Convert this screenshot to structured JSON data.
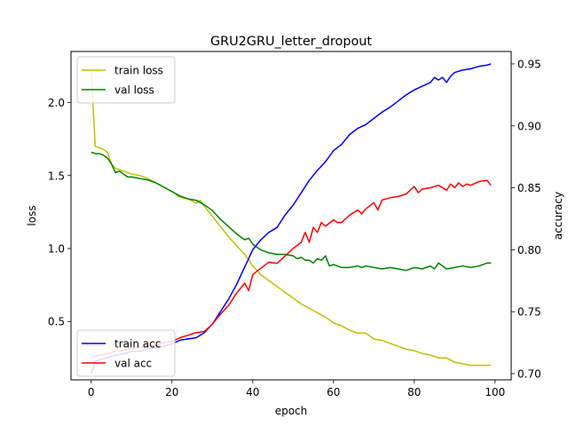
{
  "chart_data": {
    "type": "line",
    "title": "GRU2GRU_letter_dropout",
    "xlabel": "epoch",
    "ylabel_left": "loss",
    "ylabel_right": "accuracy",
    "xlim": [
      -5,
      104
    ],
    "ylim_left": [
      0.1,
      2.35
    ],
    "ylim_right": [
      0.695,
      0.96
    ],
    "xticks": [
      0,
      20,
      40,
      60,
      80,
      100
    ],
    "yticks_left": [
      0.5,
      1.0,
      1.5,
      2.0
    ],
    "yticks_right": [
      0.7,
      0.75,
      0.8,
      0.85,
      0.9,
      0.95
    ],
    "grid": false,
    "legend_left": {
      "placement": "top-left",
      "entries": [
        "train loss",
        "val loss"
      ]
    },
    "legend_right": {
      "placement": "bottom-left",
      "entries": [
        "train acc",
        "val acc"
      ]
    },
    "colors": {
      "train_loss": "#bfbf00",
      "val_loss": "#008000",
      "train_acc": "#0000ff",
      "val_acc": "#ff0000"
    },
    "series": [
      {
        "name": "train loss",
        "axis": "left",
        "color": "#bfbf00",
        "x": [
          0,
          1,
          2,
          3,
          4,
          5,
          6,
          8,
          10,
          12,
          14,
          16,
          18,
          20,
          22,
          24,
          26,
          27,
          28,
          30,
          32,
          34,
          36,
          38,
          40,
          42,
          44,
          46,
          48,
          50,
          52,
          54,
          56,
          58,
          60,
          62,
          64,
          66,
          68,
          70,
          72,
          74,
          76,
          78,
          80,
          82,
          84,
          86,
          88,
          90,
          92,
          94,
          96,
          99
        ],
        "values": [
          2.22,
          1.7,
          1.69,
          1.68,
          1.66,
          1.58,
          1.55,
          1.53,
          1.51,
          1.5,
          1.48,
          1.45,
          1.42,
          1.39,
          1.35,
          1.34,
          1.31,
          1.33,
          1.29,
          1.22,
          1.15,
          1.08,
          1.02,
          0.96,
          0.88,
          0.82,
          0.78,
          0.74,
          0.7,
          0.66,
          0.62,
          0.59,
          0.56,
          0.53,
          0.49,
          0.47,
          0.44,
          0.42,
          0.42,
          0.38,
          0.37,
          0.35,
          0.33,
          0.31,
          0.3,
          0.28,
          0.27,
          0.25,
          0.25,
          0.22,
          0.21,
          0.2,
          0.2,
          0.2
        ]
      },
      {
        "name": "val loss",
        "axis": "left",
        "color": "#008000",
        "x": [
          0,
          1,
          2,
          3,
          4,
          5,
          6,
          7,
          8,
          9,
          10,
          12,
          14,
          16,
          18,
          20,
          22,
          24,
          26,
          28,
          30,
          32,
          34,
          36,
          38,
          39,
          40,
          42,
          44,
          46,
          48,
          50,
          51,
          52,
          53,
          54,
          55,
          56,
          57,
          58,
          59,
          60,
          62,
          64,
          66,
          67,
          68,
          70,
          72,
          74,
          76,
          78,
          80,
          82,
          84,
          85,
          86,
          88,
          90,
          92,
          94,
          96,
          98,
          99
        ],
        "values": [
          1.66,
          1.65,
          1.65,
          1.64,
          1.62,
          1.58,
          1.52,
          1.53,
          1.51,
          1.49,
          1.49,
          1.48,
          1.47,
          1.45,
          1.42,
          1.39,
          1.36,
          1.34,
          1.33,
          1.3,
          1.26,
          1.2,
          1.15,
          1.1,
          1.06,
          1.07,
          1.03,
          0.99,
          0.97,
          0.96,
          0.96,
          0.95,
          0.93,
          0.94,
          0.92,
          0.92,
          0.9,
          0.93,
          0.92,
          0.95,
          0.88,
          0.89,
          0.87,
          0.87,
          0.88,
          0.87,
          0.88,
          0.87,
          0.86,
          0.87,
          0.86,
          0.85,
          0.87,
          0.86,
          0.88,
          0.86,
          0.9,
          0.86,
          0.87,
          0.88,
          0.87,
          0.88,
          0.9,
          0.9
        ]
      },
      {
        "name": "train acc",
        "axis": "right",
        "color": "#0000ff",
        "x": [
          0,
          1,
          2,
          4,
          6,
          8,
          10,
          12,
          14,
          16,
          18,
          20,
          22,
          24,
          26,
          28,
          30,
          32,
          34,
          36,
          38,
          40,
          42,
          44,
          46,
          48,
          50,
          52,
          54,
          56,
          58,
          60,
          62,
          64,
          66,
          68,
          70,
          72,
          74,
          76,
          78,
          80,
          82,
          84,
          85,
          86,
          87,
          88,
          89,
          90,
          92,
          94,
          96,
          98,
          99
        ],
        "values": [
          0.7,
          0.71,
          0.711,
          0.713,
          0.715,
          0.716,
          0.718,
          0.718,
          0.72,
          0.721,
          0.722,
          0.724,
          0.727,
          0.728,
          0.729,
          0.733,
          0.74,
          0.75,
          0.76,
          0.772,
          0.786,
          0.8,
          0.808,
          0.814,
          0.818,
          0.828,
          0.836,
          0.846,
          0.856,
          0.864,
          0.871,
          0.88,
          0.885,
          0.893,
          0.898,
          0.901,
          0.906,
          0.911,
          0.915,
          0.92,
          0.925,
          0.929,
          0.932,
          0.935,
          0.939,
          0.937,
          0.939,
          0.935,
          0.94,
          0.943,
          0.945,
          0.946,
          0.948,
          0.949,
          0.95
        ]
      },
      {
        "name": "val acc",
        "axis": "right",
        "color": "#ff0000",
        "x": [
          0,
          2,
          4,
          6,
          8,
          10,
          12,
          14,
          16,
          18,
          20,
          22,
          24,
          26,
          28,
          30,
          32,
          34,
          36,
          38,
          39,
          40,
          42,
          44,
          46,
          48,
          50,
          52,
          53,
          54,
          55,
          56,
          57,
          58,
          60,
          61,
          62,
          64,
          66,
          67,
          68,
          70,
          71,
          72,
          74,
          76,
          78,
          80,
          81,
          82,
          84,
          86,
          88,
          89,
          90,
          91,
          92,
          93,
          94,
          96,
          98,
          99
        ],
        "values": [
          0.713,
          0.715,
          0.716,
          0.718,
          0.719,
          0.72,
          0.721,
          0.722,
          0.723,
          0.725,
          0.726,
          0.729,
          0.731,
          0.733,
          0.734,
          0.74,
          0.748,
          0.755,
          0.765,
          0.773,
          0.767,
          0.78,
          0.785,
          0.79,
          0.789,
          0.795,
          0.801,
          0.806,
          0.814,
          0.806,
          0.818,
          0.814,
          0.822,
          0.819,
          0.824,
          0.822,
          0.822,
          0.828,
          0.832,
          0.829,
          0.833,
          0.838,
          0.832,
          0.84,
          0.842,
          0.843,
          0.845,
          0.851,
          0.846,
          0.849,
          0.85,
          0.852,
          0.848,
          0.853,
          0.85,
          0.854,
          0.851,
          0.853,
          0.852,
          0.855,
          0.856,
          0.852
        ]
      }
    ]
  }
}
